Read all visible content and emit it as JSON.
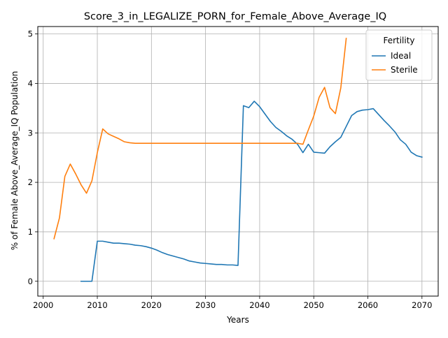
{
  "chart_data": {
    "type": "line",
    "title": "Score_3_in_LEGALIZE_PORN_for_Female_Above_Average_IQ",
    "xlabel": "Years",
    "ylabel": "% of Female Above_Average_IQ Population",
    "xlim": [
      1999,
      2073
    ],
    "ylim": [
      -0.3,
      5.15
    ],
    "xticks": [
      2000,
      2010,
      2020,
      2030,
      2040,
      2050,
      2060,
      2070
    ],
    "yticks": [
      0,
      1,
      2,
      3,
      4,
      5
    ],
    "grid": true,
    "legend": {
      "title": "Fertility",
      "placement": "top-right"
    },
    "series": [
      {
        "name": "Ideal",
        "color": "#1f77b4",
        "points": [
          [
            2007,
            0.0
          ],
          [
            2008,
            0.0
          ],
          [
            2009,
            0.0
          ],
          [
            2010,
            0.81
          ],
          [
            2011,
            0.81
          ],
          [
            2012,
            0.79
          ],
          [
            2013,
            0.77
          ],
          [
            2014,
            0.77
          ],
          [
            2015,
            0.76
          ],
          [
            2016,
            0.75
          ],
          [
            2017,
            0.73
          ],
          [
            2018,
            0.72
          ],
          [
            2019,
            0.7
          ],
          [
            2020,
            0.67
          ],
          [
            2021,
            0.63
          ],
          [
            2022,
            0.58
          ],
          [
            2023,
            0.54
          ],
          [
            2024,
            0.51
          ],
          [
            2025,
            0.48
          ],
          [
            2026,
            0.45
          ],
          [
            2027,
            0.41
          ],
          [
            2028,
            0.39
          ],
          [
            2029,
            0.37
          ],
          [
            2030,
            0.36
          ],
          [
            2031,
            0.35
          ],
          [
            2032,
            0.34
          ],
          [
            2033,
            0.34
          ],
          [
            2034,
            0.33
          ],
          [
            2035,
            0.33
          ],
          [
            2036,
            0.32
          ],
          [
            2037,
            3.55
          ],
          [
            2038,
            3.51
          ],
          [
            2039,
            3.64
          ],
          [
            2040,
            3.53
          ],
          [
            2041,
            3.38
          ],
          [
            2042,
            3.23
          ],
          [
            2043,
            3.11
          ],
          [
            2044,
            3.03
          ],
          [
            2045,
            2.94
          ],
          [
            2046,
            2.87
          ],
          [
            2047,
            2.77
          ],
          [
            2048,
            2.6
          ],
          [
            2049,
            2.77
          ],
          [
            2050,
            2.61
          ],
          [
            2051,
            2.6
          ],
          [
            2052,
            2.59
          ],
          [
            2053,
            2.72
          ],
          [
            2054,
            2.82
          ],
          [
            2055,
            2.91
          ],
          [
            2056,
            3.13
          ],
          [
            2057,
            3.35
          ],
          [
            2058,
            3.43
          ],
          [
            2059,
            3.46
          ],
          [
            2060,
            3.47
          ],
          [
            2061,
            3.49
          ],
          [
            2062,
            3.37
          ],
          [
            2063,
            3.25
          ],
          [
            2064,
            3.14
          ],
          [
            2065,
            3.02
          ],
          [
            2066,
            2.86
          ],
          [
            2067,
            2.77
          ],
          [
            2068,
            2.61
          ],
          [
            2069,
            2.54
          ],
          [
            2070,
            2.51
          ]
        ]
      },
      {
        "name": "Sterile",
        "color": "#ff7f0e",
        "points": [
          [
            2002,
            0.86
          ],
          [
            2003,
            1.28
          ],
          [
            2004,
            2.12
          ],
          [
            2005,
            2.37
          ],
          [
            2006,
            2.17
          ],
          [
            2007,
            1.95
          ],
          [
            2008,
            1.78
          ],
          [
            2009,
            2.03
          ],
          [
            2010,
            2.6
          ],
          [
            2011,
            3.08
          ],
          [
            2012,
            2.98
          ],
          [
            2013,
            2.93
          ],
          [
            2014,
            2.88
          ],
          [
            2015,
            2.82
          ],
          [
            2016,
            2.8
          ],
          [
            2017,
            2.79
          ],
          [
            2018,
            2.79
          ],
          [
            2020,
            2.79
          ],
          [
            2025,
            2.79
          ],
          [
            2030,
            2.79
          ],
          [
            2035,
            2.79
          ],
          [
            2040,
            2.79
          ],
          [
            2045,
            2.79
          ],
          [
            2047,
            2.79
          ],
          [
            2048,
            2.77
          ],
          [
            2049,
            3.06
          ],
          [
            2050,
            3.34
          ],
          [
            2051,
            3.72
          ],
          [
            2052,
            3.92
          ],
          [
            2053,
            3.51
          ],
          [
            2054,
            3.39
          ],
          [
            2055,
            3.91
          ],
          [
            2056,
            4.91
          ]
        ]
      }
    ]
  }
}
